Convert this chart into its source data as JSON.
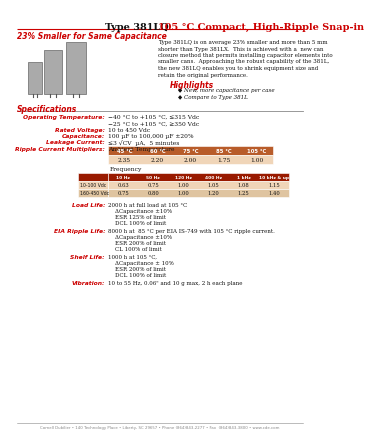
{
  "title_black": "Type 381LQ ",
  "title_red": "105 °C Compact, High-Ripple Snap-in",
  "subtitle": "23% Smaller for Same Capacitance",
  "body_text": "Type 381LQ is on average 23% smaller and more than 5 mm\nshorter than Type 381LX.  This is achieved with a  new can\nclosure method that permits installing capacitor elements into\nsmaller cans.  Approaching the robust capability of the 381L,\nthe new 381LQ enables you to shrink equipment size and\nretain the original performance.",
  "highlights_title": "Highlights",
  "highlights": [
    "New, more capacitance per case",
    "Compare to Type 381L"
  ],
  "spec_title": "Specifications",
  "specs": [
    [
      "Operating Temperature:",
      "−40 °C to +105 °C, ≤315 Vdc\n−25 °C to +105 °C, ≥350 Vdc"
    ],
    [
      "Rated Voltage:",
      "10 to 450 Vdc"
    ],
    [
      "Capacitance:",
      "100 µF to 100,000 µF ±20%"
    ],
    [
      "Leakage Current:",
      "≤3 √CV  µA,  5 minutes"
    ],
    [
      "Ripple Current Multipliers:",
      "Ambient Temperature"
    ]
  ],
  "amb_temp_headers": [
    "45 °C",
    "60 °C",
    "75 °C",
    "85 °C",
    "105 °C"
  ],
  "amb_temp_values": [
    "2.35",
    "2.20",
    "2.00",
    "1.75",
    "1.00"
  ],
  "freq_label": "Frequency",
  "freq_headers": [
    "10 Hz",
    "50 Hz",
    "120 Hz",
    "400 Hz",
    "1 kHz",
    "10 kHz & up"
  ],
  "freq_row1_label": "10-100 Vdc",
  "freq_row1": [
    "0.63",
    "0.75",
    "1.00",
    "1.05",
    "1.08",
    "1.15"
  ],
  "freq_row2_label": "160-450 Vdc",
  "freq_row2": [
    "0.75",
    "0.80",
    "1.00",
    "1.20",
    "1.25",
    "1.40"
  ],
  "load_life_label": "Load Life:",
  "load_life_lines": [
    "2000 h at full load at 105 °C",
    "    ΔCapacitance ±10%",
    "    ESR 125% of limit",
    "    DCL 100% of limit"
  ],
  "eia_label": "EIA Ripple Life:",
  "eia_lines": [
    "8000 h at  85 °C per EIA IS-749 with 105 °C ripple current.",
    "    ΔCapacitance ±10%",
    "    ESR 200% of limit",
    "    CL 100% of limit"
  ],
  "shelf_label": "Shelf Life:",
  "shelf_lines": [
    "1000 h at 105 °C,",
    "    ΔCapacitance ± 10%",
    "    ESR 200% of limit",
    "    DCL 100% of limit"
  ],
  "vib_label": "Vibration:",
  "vib_lines": [
    "10 to 55 Hz, 0.06\" and 10 g max, 2 h each plane"
  ],
  "footer": "Cornell Dubilier • 140 Technology Place • Liberty, SC 29657 • Phone (864)843-2277 • Fax  (864)843-3800 • www.cde.com",
  "red_color": "#cc0000",
  "bg_color": "#ffffff"
}
